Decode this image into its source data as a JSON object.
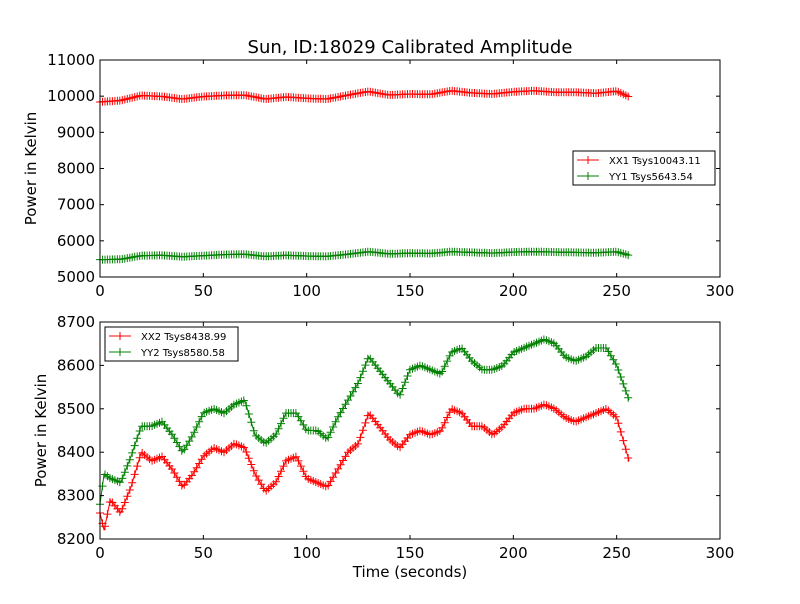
{
  "figure": {
    "title": "Sun, ID:18029 Calibrated Amplitude",
    "xlabel": "Time (seconds)"
  },
  "colors": {
    "red": "#ff0000",
    "green": "#008000"
  },
  "chart_data": [
    {
      "type": "line",
      "title": "Sun, ID:18029 Calibrated Amplitude",
      "xlabel": "",
      "ylabel": "Power in Kelvin",
      "xlim": [
        0,
        300
      ],
      "ylim": [
        5000,
        11000
      ],
      "xticks": [
        0,
        50,
        100,
        150,
        200,
        250,
        300
      ],
      "yticks": [
        5000,
        6000,
        7000,
        8000,
        9000,
        10000,
        11000
      ],
      "grid": false,
      "legend_position": "right",
      "x": [
        0,
        10,
        20,
        30,
        40,
        50,
        60,
        70,
        80,
        90,
        100,
        110,
        120,
        130,
        140,
        150,
        160,
        170,
        180,
        190,
        200,
        210,
        220,
        230,
        240,
        250,
        256
      ],
      "series": [
        {
          "name": "XX1 Tsys10043.11",
          "color": "#ff0000",
          "marker": "+",
          "values": [
            9840,
            9880,
            10020,
            9990,
            9920,
            9990,
            10020,
            10030,
            9920,
            9980,
            9940,
            9920,
            10030,
            10130,
            10030,
            10060,
            10050,
            10150,
            10090,
            10060,
            10120,
            10150,
            10110,
            10110,
            10080,
            10140,
            9980
          ]
        },
        {
          "name": "YY1 Tsys5643.54",
          "color": "#008000",
          "marker": "+",
          "values": [
            5480,
            5490,
            5590,
            5600,
            5560,
            5590,
            5620,
            5630,
            5570,
            5600,
            5580,
            5570,
            5630,
            5700,
            5640,
            5660,
            5650,
            5700,
            5680,
            5660,
            5690,
            5700,
            5690,
            5680,
            5670,
            5700,
            5600
          ]
        }
      ]
    },
    {
      "type": "line",
      "title": "",
      "xlabel": "Time (seconds)",
      "ylabel": "Power in Kelvin",
      "xlim": [
        0,
        300
      ],
      "ylim": [
        8200,
        8700
      ],
      "xticks": [
        0,
        50,
        100,
        150,
        200,
        250,
        300
      ],
      "yticks": [
        8200,
        8300,
        8400,
        8500,
        8600,
        8700
      ],
      "grid": false,
      "legend_position": "top-left",
      "x": [
        0,
        2,
        5,
        10,
        15,
        20,
        25,
        30,
        35,
        40,
        45,
        50,
        55,
        60,
        65,
        70,
        75,
        80,
        85,
        90,
        95,
        100,
        105,
        110,
        115,
        120,
        125,
        130,
        135,
        140,
        145,
        150,
        155,
        160,
        165,
        170,
        175,
        180,
        185,
        190,
        195,
        200,
        205,
        210,
        215,
        220,
        225,
        230,
        235,
        240,
        245,
        250,
        253,
        256
      ],
      "series": [
        {
          "name": "XX2 Tsys8438.99",
          "color": "#ff0000",
          "marker": "+",
          "values": [
            8260,
            8220,
            8290,
            8260,
            8320,
            8400,
            8380,
            8390,
            8360,
            8320,
            8350,
            8390,
            8410,
            8400,
            8420,
            8410,
            8350,
            8310,
            8330,
            8380,
            8390,
            8340,
            8330,
            8320,
            8360,
            8400,
            8420,
            8490,
            8460,
            8430,
            8410,
            8440,
            8450,
            8440,
            8450,
            8500,
            8490,
            8460,
            8460,
            8440,
            8460,
            8490,
            8500,
            8500,
            8510,
            8500,
            8480,
            8470,
            8480,
            8490,
            8500,
            8480,
            8430,
            8380
          ]
        },
        {
          "name": "YY2 Tsys8580.58",
          "color": "#008000",
          "marker": "+",
          "values": [
            8280,
            8350,
            8340,
            8330,
            8390,
            8460,
            8460,
            8470,
            8440,
            8400,
            8440,
            8490,
            8500,
            8490,
            8510,
            8520,
            8440,
            8420,
            8440,
            8490,
            8490,
            8450,
            8450,
            8430,
            8480,
            8520,
            8560,
            8620,
            8590,
            8560,
            8530,
            8590,
            8600,
            8590,
            8580,
            8630,
            8640,
            8610,
            8590,
            8590,
            8600,
            8630,
            8640,
            8650,
            8660,
            8650,
            8620,
            8610,
            8620,
            8640,
            8640,
            8600,
            8560,
            8520
          ]
        }
      ]
    }
  ]
}
